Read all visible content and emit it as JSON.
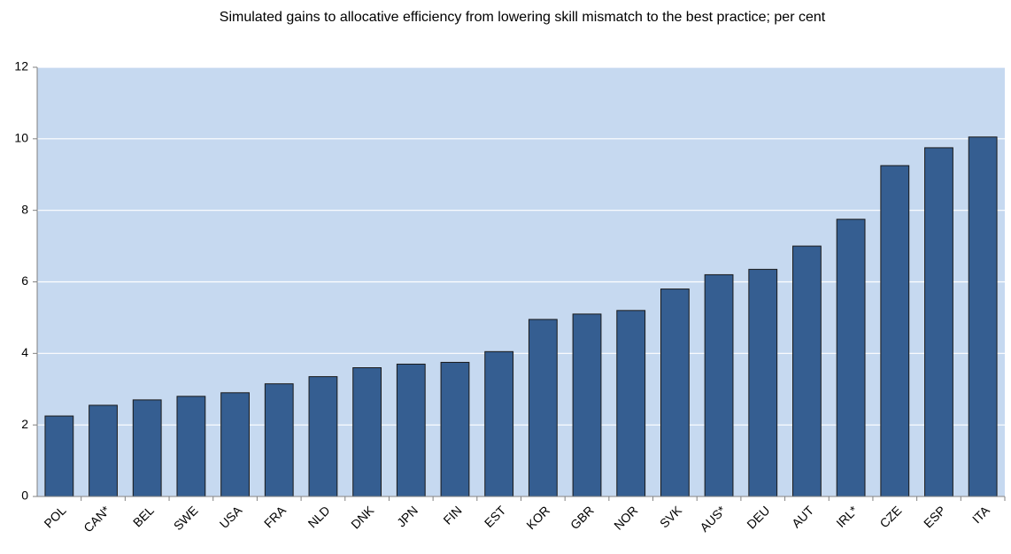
{
  "chart_data": {
    "type": "bar",
    "title": "Simulated gains to allocative efficiency from lowering skill mismatch to the best practice; per cent",
    "categories": [
      "POL",
      "CAN*",
      "BEL",
      "SWE",
      "USA",
      "FRA",
      "NLD",
      "DNK",
      "JPN",
      "FIN",
      "EST",
      "KOR",
      "GBR",
      "NOR",
      "SVK",
      "AUS*",
      "DEU",
      "AUT",
      "IRL*",
      "CZE",
      "ESP",
      "ITA"
    ],
    "values": [
      2.25,
      2.55,
      2.7,
      2.8,
      2.9,
      3.15,
      3.35,
      3.6,
      3.7,
      3.75,
      4.05,
      4.95,
      5.1,
      5.2,
      5.8,
      6.2,
      6.35,
      7.0,
      7.75,
      9.25,
      9.75,
      10.05
    ],
    "color": "#355e91",
    "ylim": [
      0,
      12
    ],
    "yticks": [
      0,
      2,
      4,
      6,
      8,
      10,
      12
    ],
    "grid": true
  }
}
